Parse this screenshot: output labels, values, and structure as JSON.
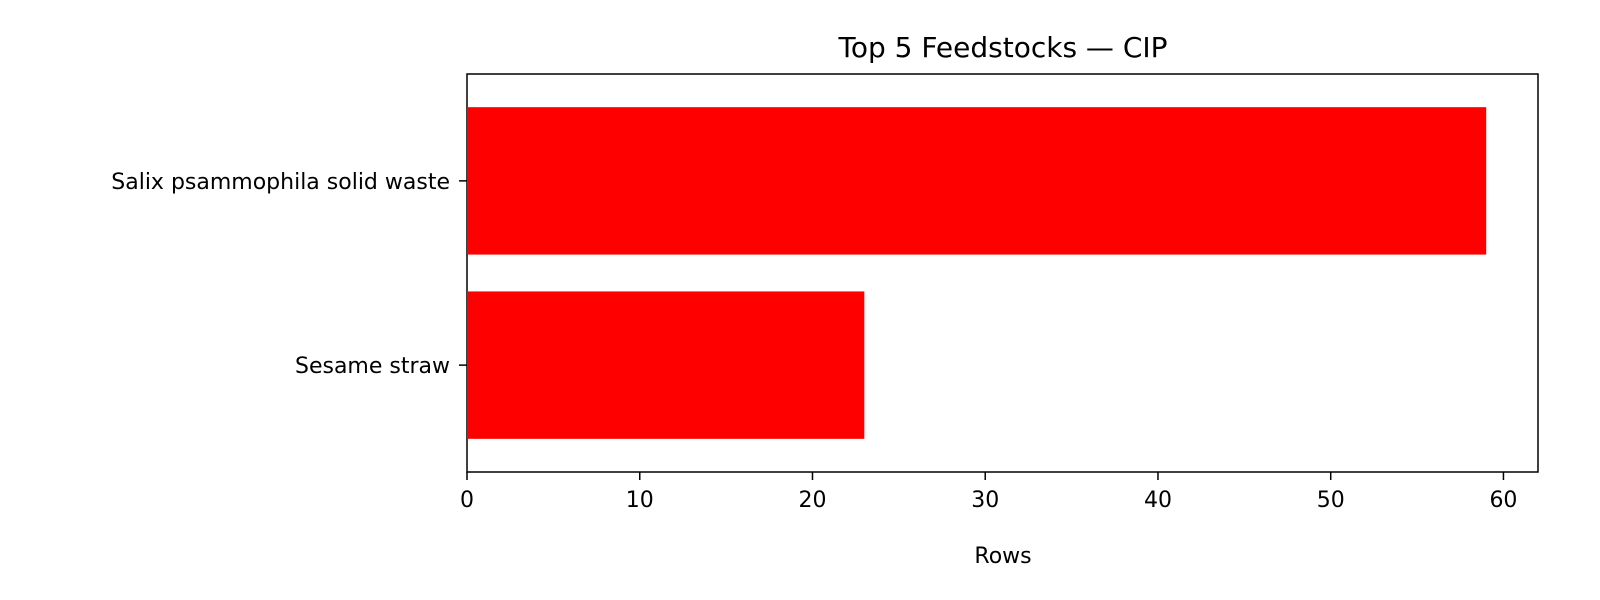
{
  "chart_data": {
    "type": "bar",
    "orientation": "horizontal",
    "title": "Top 5 Feedstocks — CIP",
    "xlabel": "Rows",
    "ylabel": "",
    "categories": [
      "Salix psammophila solid waste",
      "Sesame straw"
    ],
    "values": [
      59,
      23
    ],
    "xlim": [
      0,
      62
    ],
    "xticks": [
      0,
      10,
      20,
      30,
      40,
      50,
      60
    ],
    "grid": false,
    "legend": "none",
    "bar_color": "#ff0000"
  }
}
